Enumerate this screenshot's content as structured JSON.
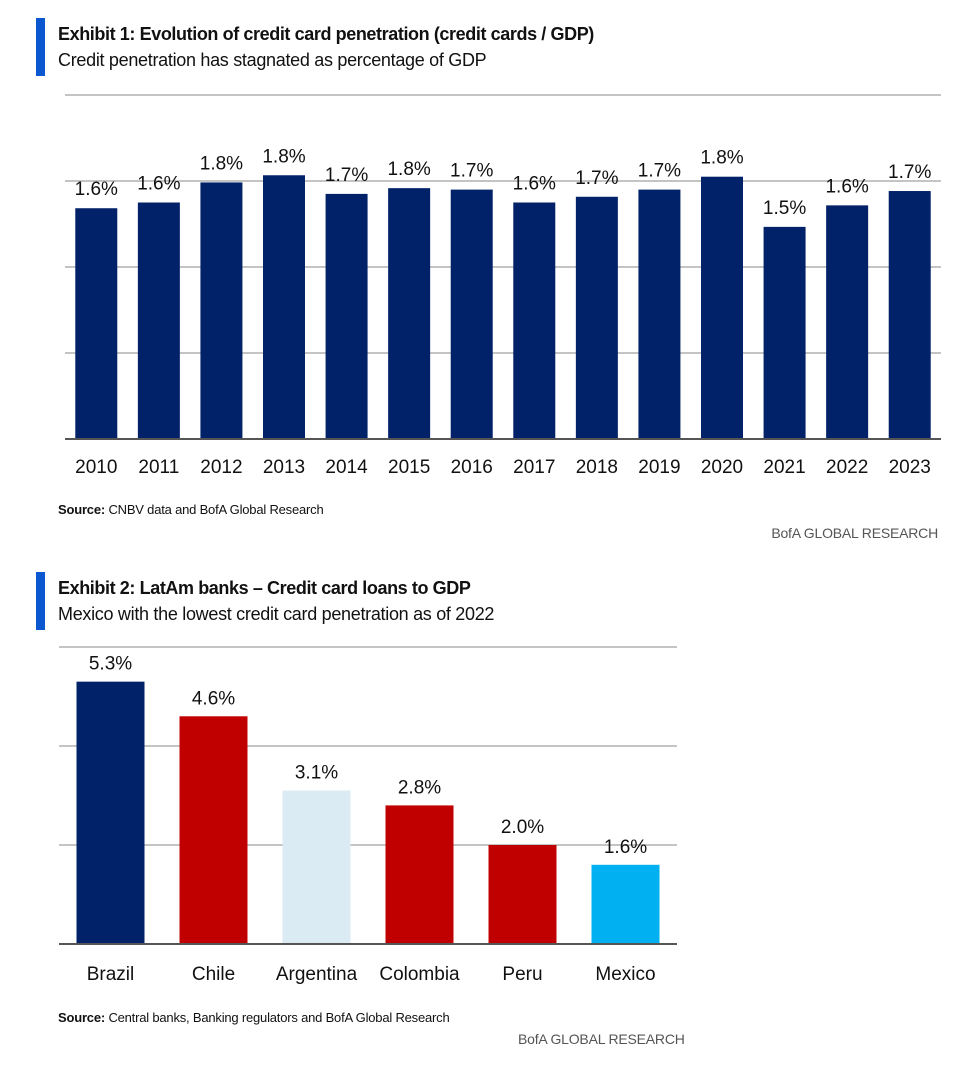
{
  "colors": {
    "navy": "#012169",
    "red": "#c00000",
    "light_blue": "#dbebf4",
    "cyan": "#00b0f0",
    "accent": "#0b57d0"
  },
  "chart_data": [
    {
      "type": "bar",
      "title": "Exhibit 1: Evolution of credit card penetration (credit cards / GDP)",
      "subtitle": "Credit penetration has stagnated as percentage of GDP",
      "categories": [
        "2010",
        "2011",
        "2012",
        "2013",
        "2014",
        "2015",
        "2016",
        "2017",
        "2018",
        "2019",
        "2020",
        "2021",
        "2022",
        "2023"
      ],
      "values": [
        1.61,
        1.65,
        1.79,
        1.84,
        1.71,
        1.75,
        1.74,
        1.65,
        1.69,
        1.74,
        1.83,
        1.48,
        1.63,
        1.73
      ],
      "data_labels": [
        "1.6%",
        "1.6%",
        "1.8%",
        "1.8%",
        "1.7%",
        "1.8%",
        "1.7%",
        "1.6%",
        "1.7%",
        "1.7%",
        "1.8%",
        "1.5%",
        "1.6%",
        "1.7%"
      ],
      "unit": "%",
      "ylim": [
        0,
        2.4
      ],
      "grid_step": 0.6,
      "grid": true,
      "source_label": "Source:",
      "source": "CNBV data and BofA Global Research",
      "brand": "BofA GLOBAL RESEARCH"
    },
    {
      "type": "bar",
      "title": "Exhibit 2: LatAm banks – Credit card loans to GDP",
      "subtitle": "Mexico with the lowest credit card penetration as of 2022",
      "categories": [
        "Brazil",
        "Chile",
        "Argentina",
        "Colombia",
        "Peru",
        "Mexico"
      ],
      "values": [
        5.3,
        4.6,
        3.1,
        2.8,
        2.0,
        1.6
      ],
      "data_labels": [
        "5.3%",
        "4.6%",
        "3.1%",
        "2.8%",
        "2.0%",
        "1.6%"
      ],
      "bar_colors": [
        "#012169",
        "#c00000",
        "#dbebf4",
        "#c00000",
        "#c00000",
        "#00b0f0"
      ],
      "unit": "%",
      "ylim": [
        0,
        6
      ],
      "grid_step": 2,
      "grid": true,
      "source_label": "Source:",
      "source": "Central banks, Banking regulators and BofA Global Research",
      "brand": "BofA GLOBAL RESEARCH"
    }
  ]
}
